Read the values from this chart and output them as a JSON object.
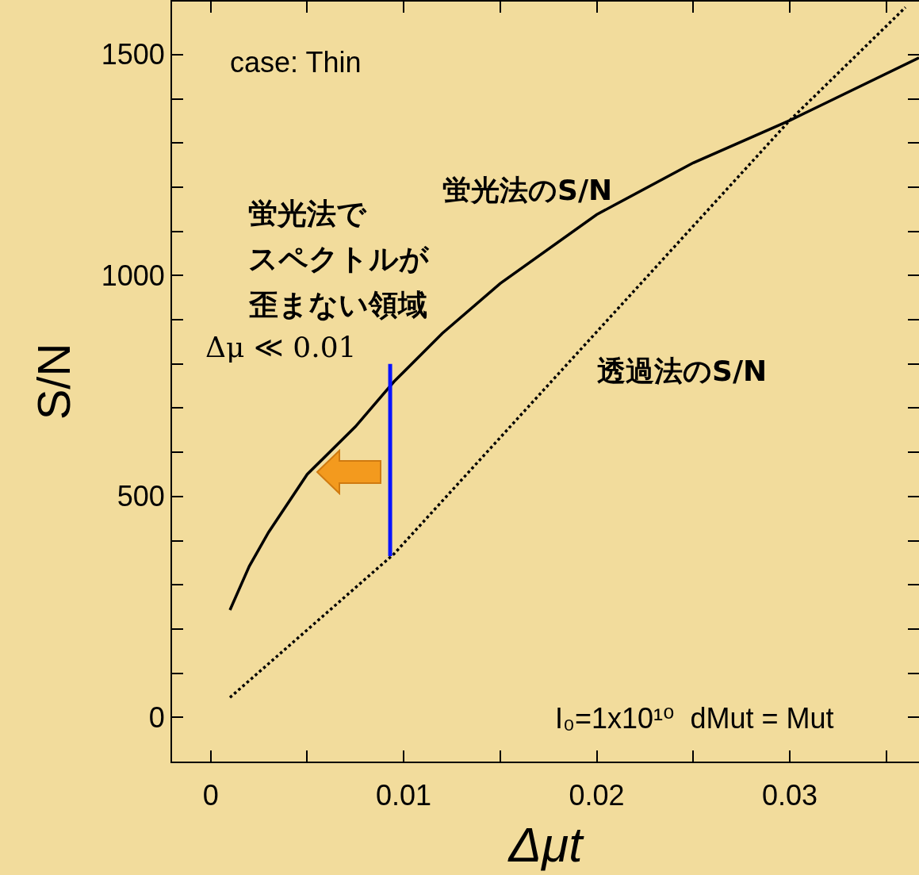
{
  "chart_data": {
    "type": "line",
    "xlabel": "Δμt",
    "ylabel": "S/N",
    "xlim": [
      -0.002,
      0.0367
    ],
    "ylim": [
      -100,
      1620
    ],
    "xticks": [
      0,
      {
        "value": 0.005,
        "label": null
      },
      0.01,
      {
        "value": 0.015,
        "label": null
      },
      0.02,
      {
        "value": 0.025,
        "label": null
      },
      0.03,
      {
        "value": 0.035,
        "label": null
      }
    ],
    "yticks": [
      0,
      {
        "value": 100,
        "label": null
      },
      {
        "value": 200,
        "label": null
      },
      {
        "value": 300,
        "label": null
      },
      {
        "value": 400,
        "label": null
      },
      500,
      {
        "value": 600,
        "label": null
      },
      {
        "value": 700,
        "label": null
      },
      {
        "value": 800,
        "label": null
      },
      {
        "value": 900,
        "label": null
      },
      1000,
      {
        "value": 1100,
        "label": null
      },
      {
        "value": 1200,
        "label": null
      },
      {
        "value": 1300,
        "label": null
      },
      {
        "value": 1400,
        "label": null
      },
      1500
    ],
    "grid": false,
    "marker": "none",
    "series": [
      {
        "color": "#000000",
        "line_style": "solid",
        "x": [
          0.001,
          0.002,
          0.003,
          0.005,
          0.0075,
          0.0095,
          0.012,
          0.015,
          0.02,
          0.025,
          0.03,
          0.0367
        ],
        "values": [
          243,
          342,
          419,
          550,
          658,
          760,
          869,
          982,
          1138,
          1255,
          1351,
          1493
        ]
      },
      {
        "color": "#000000",
        "line_style": "dotted",
        "x": [
          0.001,
          0.0095,
          0.03,
          0.036
        ],
        "values": [
          45,
          370,
          1351,
          1607
        ]
      },
      {
        "color": "#0a14ff",
        "line_style": "solid",
        "x": [
          0.0093,
          0.0093
        ],
        "values": [
          365,
          800
        ]
      }
    ],
    "annotations": [
      "case: Thin",
      "蛍光法のS/N",
      "透過法のS/N",
      "蛍光法で",
      "スペクトルが",
      "歪まない領域",
      "Δμ ≪ 0.01",
      "I₀=1x10¹⁰  dMut = Mut"
    ]
  }
}
